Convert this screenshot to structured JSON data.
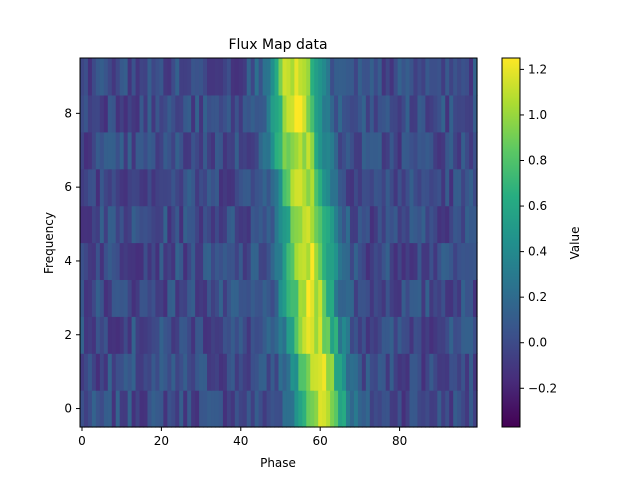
{
  "chart_data": {
    "type": "heatmap",
    "title": "Flux Map data",
    "xlabel": "Phase",
    "ylabel": "Frequency",
    "colorbar_label": "Value",
    "colormap": "viridis",
    "x": {
      "count": 100,
      "start": 0,
      "step": 1,
      "range": [
        -0.5,
        99.5
      ],
      "ticks": [
        0,
        20,
        40,
        60,
        80
      ]
    },
    "y": {
      "count": 10,
      "start": 0,
      "step": 1,
      "range": [
        -0.5,
        9.5
      ],
      "ticks": [
        0,
        2,
        4,
        6,
        8
      ]
    },
    "value_range": [
      -0.37,
      1.25
    ],
    "colorbar_ticks": [
      -0.2,
      0.0,
      0.2,
      0.4,
      0.6,
      0.8,
      1.0,
      1.2
    ],
    "pulse": {
      "description": "Bright band centred near phase 60 at frequency 0, drifting to near phase 53 at frequency 9",
      "center_by_row": [
        60.5,
        59.5,
        58.5,
        57.5,
        57.0,
        56.5,
        55.5,
        54.5,
        54.0,
        53.5
      ],
      "width": 4.5,
      "peak": 1.15
    },
    "noise": {
      "mean": 0.0,
      "spread": 0.15
    }
  }
}
